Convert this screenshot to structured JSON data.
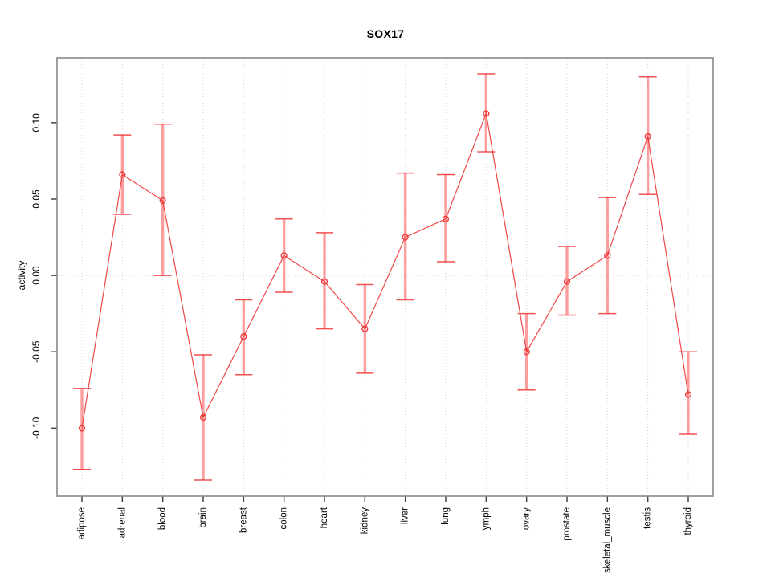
{
  "chart_data": {
    "type": "line",
    "subtype": "points-with-error-bars",
    "title": "SOX17",
    "xlabel": "",
    "ylabel": "activity",
    "categories": [
      "adipose",
      "adrenal",
      "blood",
      "brain",
      "breast",
      "colon",
      "heart",
      "kidney",
      "liver",
      "lung",
      "lymph",
      "ovary",
      "prostate",
      "skeletal_muscle",
      "testis",
      "thyroid"
    ],
    "series": [
      {
        "name": "activity",
        "values": [
          -0.1,
          0.066,
          0.049,
          -0.093,
          -0.04,
          0.013,
          -0.004,
          -0.035,
          0.025,
          0.037,
          0.106,
          -0.05,
          -0.004,
          0.013,
          0.091,
          -0.078
        ],
        "ci_low": [
          -0.127,
          0.04,
          0.0,
          -0.134,
          -0.065,
          -0.011,
          -0.035,
          -0.064,
          -0.016,
          0.009,
          0.081,
          -0.075,
          -0.026,
          -0.025,
          0.053,
          -0.104
        ],
        "ci_high": [
          -0.074,
          0.092,
          0.099,
          -0.052,
          -0.016,
          0.037,
          0.028,
          -0.006,
          0.067,
          0.066,
          0.132,
          -0.025,
          0.019,
          0.051,
          0.13,
          -0.05
        ]
      }
    ],
    "yticks": [
      {
        "label": "0.10",
        "value": 0.1
      },
      {
        "label": "0.05",
        "value": 0.05
      },
      {
        "label": "0.00",
        "value": 0.0
      },
      {
        "label": "-0.05",
        "value": -0.05
      },
      {
        "label": "-0.10",
        "value": -0.1
      }
    ],
    "ylim": [
      -0.1445,
      0.1425
    ],
    "grid": {
      "vertical": "dotted line at every category",
      "horizontal": "dotted line at y=0 only"
    },
    "legend": "none",
    "marker": "open-circle",
    "colors": {
      "line": "#ee3333",
      "error_band": "#ff8080",
      "frame": "#888888",
      "gridline": "#d4d4d4",
      "tick": "#444444",
      "text": "#000000",
      "background": "#ffffff"
    }
  }
}
